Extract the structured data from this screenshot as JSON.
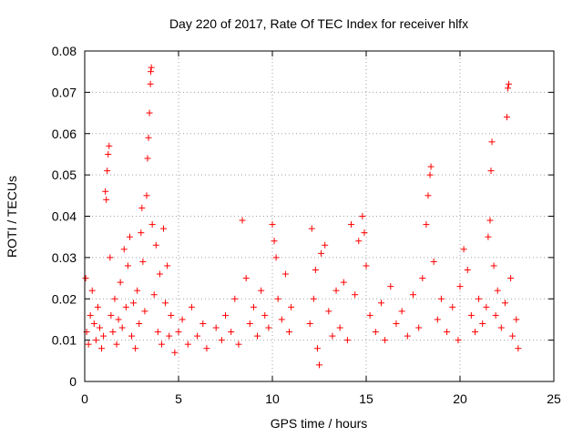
{
  "chart_data": {
    "type": "scatter",
    "title": "Day 220 of 2017, Rate Of TEC Index for receiver hlfx",
    "xlabel": "GPS time / hours",
    "ylabel": "ROTI / TECUs",
    "xlim": [
      0,
      25
    ],
    "ylim": [
      0,
      0.08
    ],
    "xticks": [
      "0",
      "5",
      "10",
      "15",
      "20",
      "25"
    ],
    "yticks": [
      "0",
      "0.01",
      "0.02",
      "0.03",
      "0.04",
      "0.05",
      "0.06",
      "0.07",
      "0.08"
    ],
    "grid": true,
    "marker": "plus",
    "color": "#ff0000",
    "series": [
      {
        "points": [
          [
            0.05,
            0.025
          ],
          [
            0.1,
            0.012
          ],
          [
            0.2,
            0.009
          ],
          [
            0.3,
            0.016
          ],
          [
            0.4,
            0.022
          ],
          [
            0.5,
            0.014
          ],
          [
            0.6,
            0.01
          ],
          [
            0.7,
            0.018
          ],
          [
            0.8,
            0.013
          ],
          [
            0.9,
            0.008
          ],
          [
            1.0,
            0.011
          ],
          [
            1.1,
            0.046
          ],
          [
            1.15,
            0.044
          ],
          [
            1.2,
            0.051
          ],
          [
            1.25,
            0.055
          ],
          [
            1.3,
            0.057
          ],
          [
            1.35,
            0.03
          ],
          [
            1.4,
            0.016
          ],
          [
            1.5,
            0.012
          ],
          [
            1.6,
            0.02
          ],
          [
            1.7,
            0.009
          ],
          [
            1.8,
            0.015
          ],
          [
            1.9,
            0.024
          ],
          [
            2.0,
            0.013
          ],
          [
            2.1,
            0.032
          ],
          [
            2.2,
            0.018
          ],
          [
            2.3,
            0.028
          ],
          [
            2.4,
            0.035
          ],
          [
            2.5,
            0.011
          ],
          [
            2.6,
            0.019
          ],
          [
            2.7,
            0.008
          ],
          [
            2.8,
            0.022
          ],
          [
            2.9,
            0.014
          ],
          [
            3.0,
            0.036
          ],
          [
            3.05,
            0.042
          ],
          [
            3.1,
            0.029
          ],
          [
            3.2,
            0.017
          ],
          [
            3.3,
            0.045
          ],
          [
            3.35,
            0.054
          ],
          [
            3.4,
            0.059
          ],
          [
            3.45,
            0.065
          ],
          [
            3.5,
            0.072
          ],
          [
            3.52,
            0.075
          ],
          [
            3.55,
            0.076
          ],
          [
            3.6,
            0.038
          ],
          [
            3.7,
            0.021
          ],
          [
            3.8,
            0.033
          ],
          [
            3.9,
            0.012
          ],
          [
            4.0,
            0.026
          ],
          [
            4.1,
            0.009
          ],
          [
            4.2,
            0.037
          ],
          [
            4.3,
            0.019
          ],
          [
            4.4,
            0.028
          ],
          [
            4.5,
            0.011
          ],
          [
            4.6,
            0.016
          ],
          [
            4.8,
            0.007
          ],
          [
            5.0,
            0.012
          ],
          [
            5.2,
            0.015
          ],
          [
            5.5,
            0.009
          ],
          [
            5.7,
            0.018
          ],
          [
            6.0,
            0.011
          ],
          [
            6.3,
            0.014
          ],
          [
            6.5,
            0.008
          ],
          [
            7.0,
            0.013
          ],
          [
            7.3,
            0.01
          ],
          [
            7.5,
            0.016
          ],
          [
            7.8,
            0.012
          ],
          [
            8.0,
            0.02
          ],
          [
            8.2,
            0.009
          ],
          [
            8.4,
            0.039
          ],
          [
            8.6,
            0.025
          ],
          [
            8.8,
            0.014
          ],
          [
            9.0,
            0.018
          ],
          [
            9.2,
            0.011
          ],
          [
            9.4,
            0.022
          ],
          [
            9.6,
            0.016
          ],
          [
            9.8,
            0.013
          ],
          [
            10.0,
            0.038
          ],
          [
            10.1,
            0.034
          ],
          [
            10.2,
            0.03
          ],
          [
            10.3,
            0.02
          ],
          [
            10.5,
            0.015
          ],
          [
            10.7,
            0.026
          ],
          [
            10.9,
            0.012
          ],
          [
            11.0,
            0.018
          ],
          [
            12.0,
            0.014
          ],
          [
            12.1,
            0.037
          ],
          [
            12.2,
            0.02
          ],
          [
            12.3,
            0.027
          ],
          [
            12.4,
            0.008
          ],
          [
            12.5,
            0.004
          ],
          [
            12.6,
            0.031
          ],
          [
            12.8,
            0.033
          ],
          [
            13.0,
            0.017
          ],
          [
            13.2,
            0.011
          ],
          [
            13.4,
            0.022
          ],
          [
            13.6,
            0.013
          ],
          [
            13.8,
            0.024
          ],
          [
            14.0,
            0.01
          ],
          [
            14.2,
            0.038
          ],
          [
            14.4,
            0.021
          ],
          [
            14.6,
            0.034
          ],
          [
            14.8,
            0.04
          ],
          [
            14.9,
            0.036
          ],
          [
            15.0,
            0.028
          ],
          [
            15.2,
            0.016
          ],
          [
            15.5,
            0.012
          ],
          [
            15.8,
            0.019
          ],
          [
            16.0,
            0.01
          ],
          [
            16.3,
            0.023
          ],
          [
            16.6,
            0.014
          ],
          [
            16.9,
            0.017
          ],
          [
            17.2,
            0.011
          ],
          [
            17.5,
            0.021
          ],
          [
            17.8,
            0.013
          ],
          [
            18.0,
            0.025
          ],
          [
            18.2,
            0.038
          ],
          [
            18.3,
            0.045
          ],
          [
            18.4,
            0.05
          ],
          [
            18.45,
            0.052
          ],
          [
            18.6,
            0.029
          ],
          [
            18.8,
            0.015
          ],
          [
            19.0,
            0.02
          ],
          [
            19.3,
            0.012
          ],
          [
            19.6,
            0.018
          ],
          [
            19.9,
            0.01
          ],
          [
            20.0,
            0.023
          ],
          [
            20.2,
            0.032
          ],
          [
            20.4,
            0.027
          ],
          [
            20.6,
            0.016
          ],
          [
            20.8,
            0.012
          ],
          [
            21.0,
            0.02
          ],
          [
            21.2,
            0.014
          ],
          [
            21.4,
            0.018
          ],
          [
            21.5,
            0.035
          ],
          [
            21.6,
            0.039
          ],
          [
            21.65,
            0.051
          ],
          [
            21.7,
            0.058
          ],
          [
            21.8,
            0.028
          ],
          [
            21.9,
            0.016
          ],
          [
            22.0,
            0.022
          ],
          [
            22.2,
            0.013
          ],
          [
            22.4,
            0.019
          ],
          [
            22.5,
            0.064
          ],
          [
            22.55,
            0.071
          ],
          [
            22.6,
            0.072
          ],
          [
            22.7,
            0.025
          ],
          [
            22.8,
            0.011
          ],
          [
            23.0,
            0.015
          ],
          [
            23.1,
            0.008
          ]
        ]
      }
    ]
  }
}
